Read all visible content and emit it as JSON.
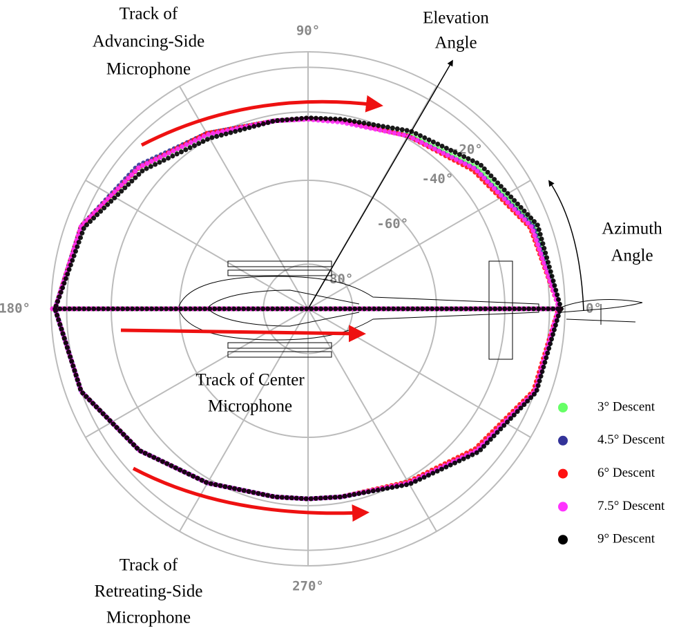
{
  "chart_data": {
    "type": "polar",
    "x": [
      0,
      20,
      40,
      60,
      80,
      90,
      100,
      120,
      140,
      160,
      180,
      200,
      220,
      240,
      260,
      270,
      280,
      300,
      320,
      340,
      360,
      null,
      180,
      180,
      180,
      180,
      180,
      0,
      0,
      0,
      0,
      0
    ],
    "series": [
      {
        "name": "3° Descent",
        "color": "#66ff66",
        "values": [
          -11,
          -20,
          -31,
          -38.5,
          -42,
          -42.3,
          -42,
          -38.5,
          -31,
          -20,
          -10,
          -20,
          -31,
          -38.5,
          -42,
          -42.3,
          -42,
          -38.5,
          -31,
          -20,
          -12,
          null,
          -9,
          -20,
          -40,
          -60,
          -80,
          -80,
          -60,
          -40,
          -20,
          -13
        ]
      },
      {
        "name": "4.5° Descent",
        "color": "#333399",
        "values": [
          -11,
          -21,
          -32,
          -39,
          -42,
          -42.3,
          -42,
          -38,
          -30,
          -20,
          -10,
          -20,
          -31,
          -38.5,
          -42,
          -42.3,
          -42,
          -38.5,
          -31,
          -20,
          -12,
          null,
          -8,
          -20,
          -40,
          -60,
          -80,
          -80,
          -60,
          -40,
          -20,
          -12
        ]
      },
      {
        "name": "6° Descent",
        "color": "#ff1111",
        "values": [
          -12,
          -23,
          -33,
          -39,
          -42,
          -42.3,
          -42,
          -38,
          -31,
          -20,
          -10,
          -20,
          -31,
          -38.5,
          -42,
          -42.3,
          -42,
          -39,
          -32,
          -21,
          -13,
          null,
          -6,
          -18,
          -38,
          -60,
          -80,
          -80,
          -60,
          -38,
          -18,
          -10
        ]
      },
      {
        "name": "7.5° Descent",
        "color": "#ff33ff",
        "values": [
          -12,
          -22,
          -32,
          -39,
          -42.5,
          -42.5,
          -42,
          -38.5,
          -31,
          -20,
          -10,
          -20,
          -31,
          -38.5,
          -42,
          -42.3,
          -42,
          -38.5,
          -31,
          -20,
          -13,
          null,
          -6,
          -18,
          -38,
          -60,
          -80,
          -80,
          -60,
          -38,
          -20,
          -12
        ]
      },
      {
        "name": "9° Descent",
        "color": "#000000",
        "values": [
          -10,
          -18,
          -29,
          -37,
          -41.5,
          -42,
          -42,
          -40,
          -33,
          -22,
          -10,
          -20,
          -31,
          -38.5,
          -42,
          -42.3,
          -42,
          -38,
          -30,
          -19,
          -11,
          null,
          -10,
          -22,
          -42,
          -62,
          -80,
          -80,
          -60,
          -40,
          -20,
          -11
        ]
      }
    ],
    "ylim": [
      -90,
      0
    ],
    "yticks": [
      {
        "value": -20,
        "label": "-20°"
      },
      {
        "value": -40,
        "label": "-40°"
      },
      {
        "value": -60,
        "label": "-60°"
      },
      {
        "value": -80,
        "label": "-80°"
      }
    ],
    "xticks": [
      {
        "value": 0,
        "label": "0°"
      },
      {
        "value": 90,
        "label": "90°"
      },
      {
        "value": 180,
        "label": "180°"
      },
      {
        "value": 270,
        "label": "270°"
      }
    ],
    "annotations": {
      "advancing": [
        "Track of",
        "Advancing-Side",
        "Microphone"
      ],
      "elevation": [
        "Elevation",
        "Angle"
      ],
      "azimuth": [
        "Azimuth",
        "Angle"
      ],
      "center": [
        "Track of Center",
        "Microphone"
      ],
      "retreating": [
        "Track of",
        "Retreating-Side",
        "Microphone"
      ]
    }
  }
}
